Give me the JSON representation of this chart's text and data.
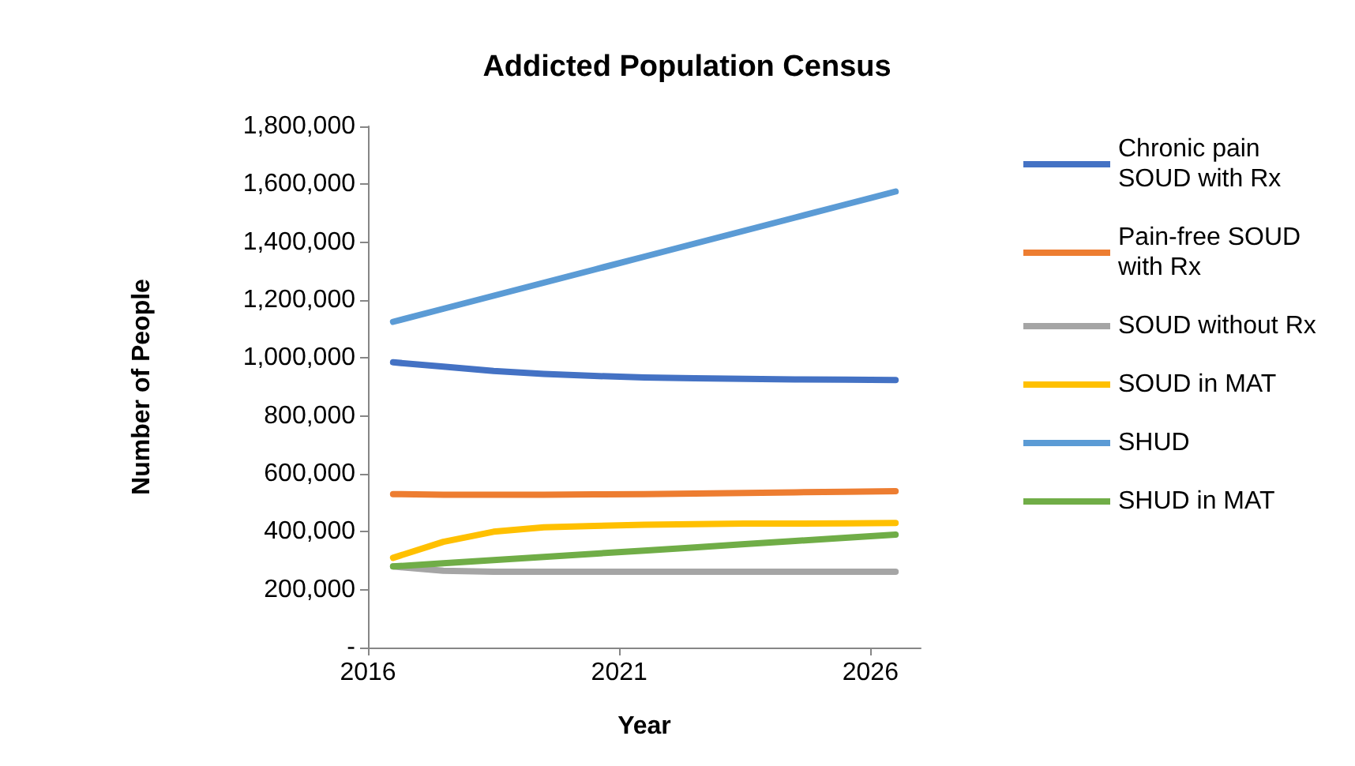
{
  "chart_data": {
    "type": "line",
    "title": "Addicted Population Census",
    "xlabel": "Year",
    "ylabel": "Number of People",
    "x": [
      2016.5,
      2017.5,
      2018.5,
      2019.5,
      2020.5,
      2021.5,
      2022.5,
      2023.5,
      2024.5,
      2025.5,
      2026.5
    ],
    "xlim": [
      2016,
      2027
    ],
    "xticks": [
      {
        "value": 2016,
        "label": "2016"
      },
      {
        "value": 2021,
        "label": "2021"
      },
      {
        "value": 2026,
        "label": "2026"
      }
    ],
    "ylim": [
      0,
      1800000
    ],
    "yticks": [
      {
        "value": 0,
        "label": "-"
      },
      {
        "value": 200000,
        "label": "200,000"
      },
      {
        "value": 400000,
        "label": "400,000"
      },
      {
        "value": 600000,
        "label": "600,000"
      },
      {
        "value": 800000,
        "label": "800,000"
      },
      {
        "value": 1000000,
        "label": "1,000,000"
      },
      {
        "value": 1200000,
        "label": "1,200,000"
      },
      {
        "value": 1400000,
        "label": "1,400,000"
      },
      {
        "value": 1600000,
        "label": "1,600,000"
      },
      {
        "value": 1800000,
        "label": "1,800,000"
      }
    ],
    "grid": false,
    "legend": "right",
    "marker": "none",
    "series": [
      {
        "name": "Chronic pain SOUD with Rx",
        "color": "#4472c4",
        "values": [
          985000,
          970000,
          955000,
          945000,
          938000,
          933000,
          930000,
          928000,
          926000,
          925000,
          924000
        ]
      },
      {
        "name": "Pain-free SOUD with Rx",
        "color": "#ed7d31",
        "values": [
          530000,
          528000,
          528000,
          528000,
          529000,
          530000,
          532000,
          534000,
          536000,
          538000,
          540000
        ]
      },
      {
        "name": "SOUD without Rx",
        "color": "#a5a5a5",
        "values": [
          280000,
          265000,
          262000,
          262000,
          262000,
          262000,
          262000,
          262000,
          262000,
          262000,
          262000
        ]
      },
      {
        "name": "SOUD in MAT",
        "color": "#ffc000",
        "values": [
          310000,
          365000,
          400000,
          415000,
          420000,
          424000,
          426000,
          428000,
          428000,
          429000,
          430000
        ]
      },
      {
        "name": "SHUD",
        "color": "#5b9bd5",
        "values": [
          1125000,
          1170000,
          1215000,
          1260000,
          1305000,
          1350000,
          1395000,
          1440000,
          1485000,
          1530000,
          1575000
        ]
      },
      {
        "name": "SHUD in MAT",
        "color": "#70ad47",
        "values": [
          280000,
          291000,
          302000,
          313000,
          324000,
          335000,
          346000,
          357000,
          368000,
          379000,
          390000
        ]
      }
    ]
  }
}
